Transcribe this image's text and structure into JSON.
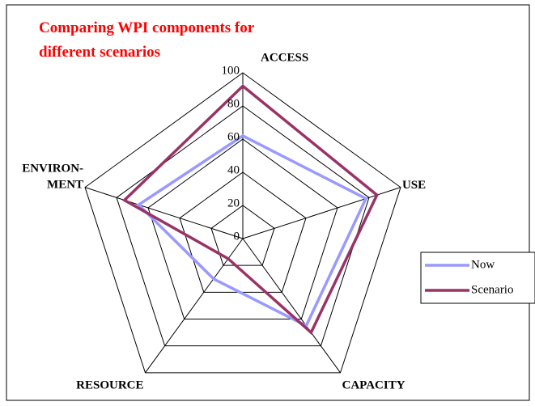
{
  "chart_data": {
    "type": "radar",
    "title": "Comparing WPI components for different scenarios",
    "categories": [
      "ACCESS",
      "USE",
      "CAPACITY",
      "RESOURCE",
      "ENVIRON-\nMENT"
    ],
    "series": [
      {
        "name": "Now",
        "color": "#9999ff",
        "values": [
          62,
          78,
          65,
          30,
          66
        ]
      },
      {
        "name": "Scenario",
        "color": "#993366",
        "values": [
          92,
          85,
          70,
          15,
          75
        ]
      }
    ],
    "ylim": [
      0,
      100
    ],
    "yticks": [
      0,
      20,
      40,
      60,
      80,
      100
    ],
    "grid": true,
    "legend": "right"
  }
}
